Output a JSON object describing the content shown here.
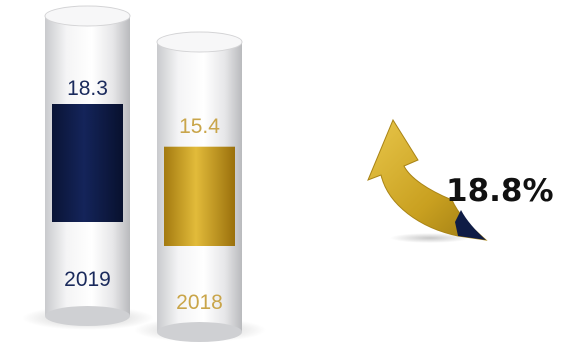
{
  "chart_data": {
    "type": "bar",
    "categories": [
      "2019",
      "2018"
    ],
    "values": [
      18.3,
      15.4
    ],
    "value_labels": [
      "18.3",
      "15.4"
    ],
    "colors": [
      "#0f1c45",
      "#c9a020"
    ],
    "label_colors": [
      "#1a2a5c",
      "#c9a54a"
    ],
    "change_label": "18.8%",
    "change_direction": "up",
    "title": "",
    "xlabel": "",
    "ylabel": "",
    "grid": false,
    "legend": false
  }
}
